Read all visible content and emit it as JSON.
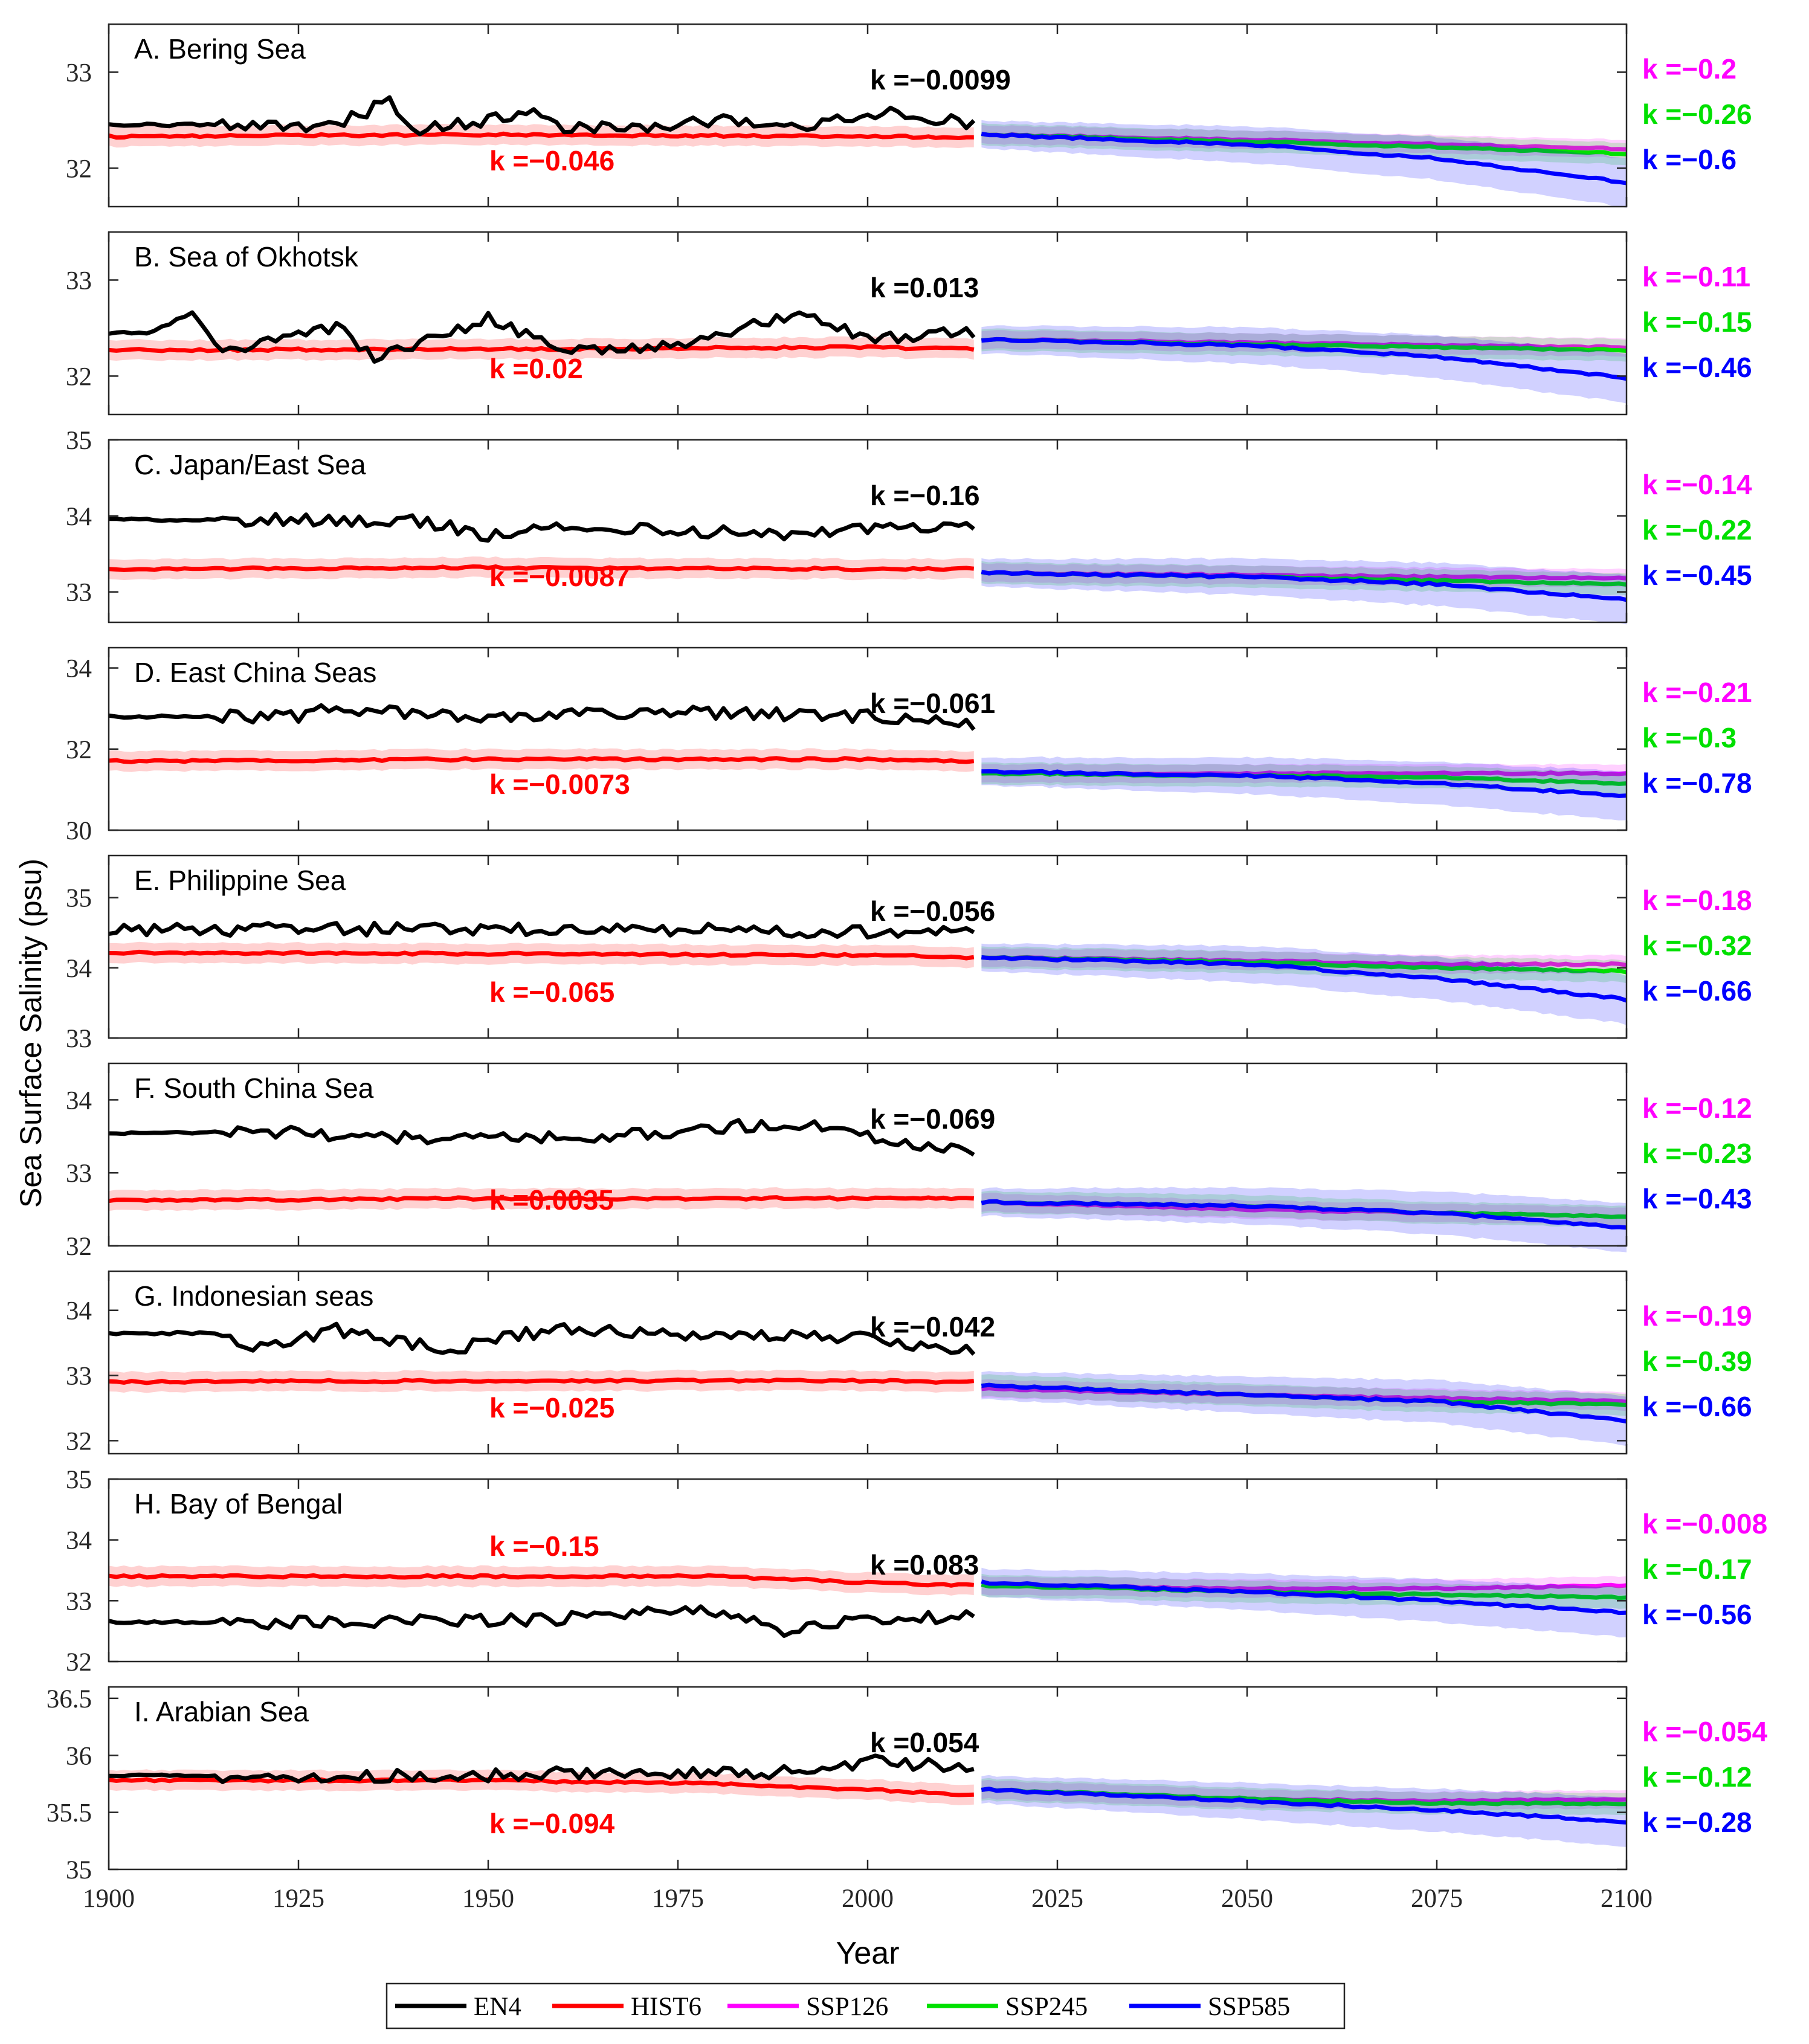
{
  "figure": {
    "ylabel": "Sea Surface Salinity (psu)",
    "xlabel": "Year",
    "x_ticks": [
      1900,
      1925,
      1950,
      1975,
      2000,
      2025,
      2050,
      2075,
      2100
    ],
    "xlim": [
      1900,
      2100
    ]
  },
  "legend": {
    "entries": [
      {
        "label": "EN4",
        "color": "#000000"
      },
      {
        "label": "HIST6",
        "color": "#ff0000"
      },
      {
        "label": "SSP126",
        "color": "#ff00ff"
      },
      {
        "label": "SSP245",
        "color": "#00e000"
      },
      {
        "label": "SSP585",
        "color": "#0000ff"
      }
    ]
  },
  "colors": {
    "en4": "#000000",
    "hist": "#ff0000",
    "ssp126": "#ff00ff",
    "ssp245": "#00e000",
    "ssp585": "#0000ff"
  },
  "chart_data": [
    {
      "type": "line",
      "title": "A. Bering Sea",
      "ylim": [
        31.6,
        33.5
      ],
      "yticks": [
        32,
        33
      ],
      "k": {
        "en4": "k =−0.0099",
        "hist": "k =−0.046",
        "ssp126": "k =−0.2",
        "ssp245": "k =−0.26",
        "ssp585": "k =−0.6"
      },
      "series": [
        {
          "name": "EN4",
          "x": [
            1900,
            1920,
            1930,
            1937,
            1940,
            1950,
            1955,
            1960,
            1975,
            1980,
            1990,
            2003,
            2014
          ],
          "y": [
            32.45,
            32.45,
            32.45,
            32.7,
            32.4,
            32.5,
            32.6,
            32.4,
            32.45,
            32.5,
            32.4,
            32.6,
            32.45
          ]
        },
        {
          "name": "HIST6",
          "x": [
            1900,
            1950,
            2000,
            2014
          ],
          "y": [
            32.33,
            32.35,
            32.33,
            32.32
          ]
        },
        {
          "name": "SSP126",
          "x": [
            2015,
            2050,
            2075,
            2100
          ],
          "y": [
            32.35,
            32.3,
            32.25,
            32.2
          ]
        },
        {
          "name": "SSP245",
          "x": [
            2015,
            2050,
            2075,
            2100
          ],
          "y": [
            32.35,
            32.28,
            32.22,
            32.15
          ]
        },
        {
          "name": "SSP585",
          "x": [
            2015,
            2050,
            2075,
            2100
          ],
          "y": [
            32.35,
            32.25,
            32.1,
            31.85
          ]
        }
      ]
    },
    {
      "type": "line",
      "title": "B. Sea of Okhotsk",
      "ylim": [
        31.6,
        33.5
      ],
      "yticks": [
        32,
        33
      ],
      "k": {
        "en4": "k =0.013",
        "hist": "k =0.02",
        "ssp126": "k =−0.11",
        "ssp245": "k =−0.15",
        "ssp585": "k =−0.46"
      },
      "series": [
        {
          "name": "EN4",
          "x": [
            1900,
            1905,
            1911,
            1915,
            1930,
            1935,
            1950,
            1960,
            1975,
            1990,
            2000,
            2014
          ],
          "y": [
            32.45,
            32.45,
            32.65,
            32.25,
            32.5,
            32.2,
            32.6,
            32.25,
            32.3,
            32.65,
            32.4,
            32.45
          ]
        },
        {
          "name": "HIST6",
          "x": [
            1900,
            1950,
            2000,
            2014
          ],
          "y": [
            32.27,
            32.28,
            32.3,
            32.28
          ]
        },
        {
          "name": "SSP126",
          "x": [
            2015,
            2050,
            2075,
            2100
          ],
          "y": [
            32.38,
            32.35,
            32.32,
            32.3
          ]
        },
        {
          "name": "SSP245",
          "x": [
            2015,
            2050,
            2075,
            2100
          ],
          "y": [
            32.38,
            32.33,
            32.3,
            32.27
          ]
        },
        {
          "name": "SSP585",
          "x": [
            2015,
            2050,
            2075,
            2100
          ],
          "y": [
            32.38,
            32.32,
            32.2,
            31.98
          ]
        }
      ]
    },
    {
      "type": "line",
      "title": "C. Japan/East Sea",
      "ylim": [
        32.6,
        35.0
      ],
      "yticks": [
        33,
        34,
        35
      ],
      "k": {
        "en4": "k =−0.16",
        "hist": "k =−0.0087",
        "ssp126": "k =−0.14",
        "ssp245": "k =−0.22",
        "ssp585": "k =−0.45"
      },
      "series": [
        {
          "name": "EN4",
          "x": [
            1900,
            1925,
            1940,
            1950,
            1960,
            1975,
            1990,
            2000,
            2014
          ],
          "y": [
            33.95,
            33.95,
            33.95,
            33.75,
            33.9,
            33.8,
            33.75,
            33.85,
            33.85
          ]
        },
        {
          "name": "HIST6",
          "x": [
            1900,
            1950,
            2000,
            2014
          ],
          "y": [
            33.3,
            33.32,
            33.3,
            33.3
          ]
        },
        {
          "name": "SSP126",
          "x": [
            2015,
            2050,
            2075,
            2100
          ],
          "y": [
            33.25,
            33.22,
            33.2,
            33.18
          ]
        },
        {
          "name": "SSP245",
          "x": [
            2015,
            2050,
            2075,
            2100
          ],
          "y": [
            33.25,
            33.2,
            33.15,
            33.1
          ]
        },
        {
          "name": "SSP585",
          "x": [
            2015,
            2050,
            2075,
            2100
          ],
          "y": [
            33.25,
            33.2,
            33.1,
            32.9
          ]
        }
      ]
    },
    {
      "type": "line",
      "title": "D. East China Seas",
      "ylim": [
        30.0,
        34.5
      ],
      "yticks": [
        30,
        32,
        34
      ],
      "k": {
        "en4": "k =−0.061",
        "hist": "k =−0.0073",
        "ssp126": "k =−0.21",
        "ssp245": "k =−0.3",
        "ssp585": "k =−0.78"
      },
      "series": [
        {
          "name": "EN4",
          "x": [
            1900,
            1925,
            1928,
            1950,
            1960,
            1975,
            2000,
            2014
          ],
          "y": [
            32.8,
            32.8,
            33.0,
            32.8,
            32.9,
            32.9,
            32.8,
            32.6
          ]
        },
        {
          "name": "HIST6",
          "x": [
            1900,
            1950,
            2000,
            2014
          ],
          "y": [
            31.7,
            31.75,
            31.75,
            31.7
          ]
        },
        {
          "name": "SSP126",
          "x": [
            2015,
            2050,
            2075,
            2100
          ],
          "y": [
            31.4,
            31.4,
            31.4,
            31.4
          ]
        },
        {
          "name": "SSP245",
          "x": [
            2015,
            2050,
            2075,
            2100
          ],
          "y": [
            31.4,
            31.35,
            31.3,
            31.15
          ]
        },
        {
          "name": "SSP585",
          "x": [
            2015,
            2050,
            2075,
            2100
          ],
          "y": [
            31.45,
            31.35,
            31.15,
            30.85
          ]
        }
      ]
    },
    {
      "type": "line",
      "title": "E. Philippine Sea",
      "ylim": [
        33.0,
        35.6
      ],
      "yticks": [
        33,
        34,
        35
      ],
      "k": {
        "en4": "k =−0.056",
        "hist": "k =−0.065",
        "ssp126": "k =−0.18",
        "ssp245": "k =−0.32",
        "ssp585": "k =−0.66"
      },
      "series": [
        {
          "name": "EN4",
          "x": [
            1900,
            1925,
            1950,
            1975,
            2000,
            2014
          ],
          "y": [
            34.55,
            34.55,
            34.55,
            34.55,
            34.5,
            34.55
          ]
        },
        {
          "name": "HIST6",
          "x": [
            1900,
            1950,
            2000,
            2014
          ],
          "y": [
            34.22,
            34.2,
            34.18,
            34.15
          ]
        },
        {
          "name": "SSP126",
          "x": [
            2015,
            2050,
            2075,
            2100
          ],
          "y": [
            34.15,
            34.1,
            34.05,
            34.05
          ]
        },
        {
          "name": "SSP245",
          "x": [
            2015,
            2050,
            2075,
            2100
          ],
          "y": [
            34.15,
            34.08,
            34.0,
            33.95
          ]
        },
        {
          "name": "SSP585",
          "x": [
            2015,
            2050,
            2075,
            2100
          ],
          "y": [
            34.15,
            34.05,
            33.85,
            33.55
          ]
        }
      ]
    },
    {
      "type": "line",
      "title": "F. South China Sea",
      "ylim": [
        32.0,
        34.5
      ],
      "yticks": [
        32,
        33,
        34
      ],
      "k": {
        "en4": "k =−0.069",
        "hist": "k =0.0035",
        "ssp126": "k =−0.12",
        "ssp245": "k =−0.23",
        "ssp585": "k =−0.43"
      },
      "series": [
        {
          "name": "EN4",
          "x": [
            1900,
            1925,
            1935,
            1950,
            1965,
            1990,
            2000,
            2014
          ],
          "y": [
            33.55,
            33.55,
            33.5,
            33.45,
            33.5,
            33.7,
            33.5,
            33.3
          ]
        },
        {
          "name": "HIST6",
          "x": [
            1900,
            1950,
            2000,
            2014
          ],
          "y": [
            32.62,
            32.65,
            32.65,
            32.65
          ]
        },
        {
          "name": "SSP126",
          "x": [
            2015,
            2050,
            2075,
            2100
          ],
          "y": [
            32.6,
            32.5,
            32.45,
            32.4
          ]
        },
        {
          "name": "SSP245",
          "x": [
            2015,
            2050,
            2075,
            2100
          ],
          "y": [
            32.6,
            32.55,
            32.45,
            32.4
          ]
        },
        {
          "name": "SSP585",
          "x": [
            2015,
            2050,
            2075,
            2100
          ],
          "y": [
            32.6,
            32.55,
            32.45,
            32.25
          ]
        }
      ]
    },
    {
      "type": "line",
      "title": "G. Indonesian seas",
      "ylim": [
        31.8,
        34.6
      ],
      "yticks": [
        32,
        33,
        34
      ],
      "k": {
        "en4": "k =−0.042",
        "hist": "k =−0.025",
        "ssp126": "k =−0.19",
        "ssp245": "k =−0.39",
        "ssp585": "k =−0.66"
      },
      "series": [
        {
          "name": "EN4",
          "x": [
            1900,
            1915,
            1917,
            1930,
            1945,
            1960,
            1975,
            2000,
            2014
          ],
          "y": [
            33.65,
            33.65,
            33.4,
            33.7,
            33.4,
            33.75,
            33.6,
            33.6,
            33.35
          ]
        },
        {
          "name": "HIST6",
          "x": [
            1900,
            1950,
            2000,
            2014
          ],
          "y": [
            32.9,
            32.92,
            32.92,
            32.9
          ]
        },
        {
          "name": "SSP126",
          "x": [
            2015,
            2050,
            2075,
            2100
          ],
          "y": [
            32.8,
            32.7,
            32.65,
            32.6
          ]
        },
        {
          "name": "SSP245",
          "x": [
            2015,
            2050,
            2075,
            2100
          ],
          "y": [
            32.85,
            32.7,
            32.6,
            32.55
          ]
        },
        {
          "name": "SSP585",
          "x": [
            2015,
            2050,
            2075,
            2100
          ],
          "y": [
            32.85,
            32.7,
            32.6,
            32.3
          ]
        }
      ]
    },
    {
      "type": "line",
      "title": "H. Bay of Bengal",
      "ylim": [
        32.0,
        35.0
      ],
      "yticks": [
        32,
        33,
        34,
        35
      ],
      "k": {
        "en4": "k =0.083",
        "hist": "k =−0.15",
        "ssp126": "k =−0.008",
        "ssp245": "k =−0.17",
        "ssp585": "k =−0.56"
      },
      "series": [
        {
          "name": "EN4",
          "x": [
            1900,
            1920,
            1930,
            1960,
            1975,
            1990,
            2000,
            2014
          ],
          "y": [
            32.65,
            32.65,
            32.65,
            32.7,
            32.9,
            32.5,
            32.7,
            32.75
          ]
        },
        {
          "name": "HIST6",
          "x": [
            1900,
            1950,
            1980,
            2000,
            2014
          ],
          "y": [
            33.4,
            33.4,
            33.4,
            33.3,
            33.25
          ]
        },
        {
          "name": "SSP126",
          "x": [
            2015,
            2050,
            2075,
            2100
          ],
          "y": [
            33.25,
            33.2,
            33.2,
            33.25
          ]
        },
        {
          "name": "SSP245",
          "x": [
            2015,
            2050,
            2075,
            2100
          ],
          "y": [
            33.25,
            33.15,
            33.1,
            33.05
          ]
        },
        {
          "name": "SSP585",
          "x": [
            2015,
            2050,
            2075,
            2100
          ],
          "y": [
            33.3,
            33.15,
            33.0,
            32.8
          ]
        }
      ]
    },
    {
      "type": "line",
      "title": "I. Arabian Sea",
      "ylim": [
        35.0,
        36.6
      ],
      "yticks": [
        35,
        35.5,
        36,
        36.5
      ],
      "k": {
        "en4": "k =0.054",
        "hist": "k =−0.094",
        "ssp126": "k =−0.054",
        "ssp245": "k =−0.12",
        "ssp585": "k =−0.28"
      },
      "series": [
        {
          "name": "EN4",
          "x": [
            1900,
            1925,
            1950,
            1965,
            1975,
            1990,
            2000,
            2014
          ],
          "y": [
            35.82,
            35.82,
            35.82,
            35.85,
            35.85,
            35.85,
            35.95,
            35.9
          ]
        },
        {
          "name": "HIST6",
          "x": [
            1900,
            1950,
            1980,
            2000,
            2014
          ],
          "y": [
            35.78,
            35.78,
            35.75,
            35.7,
            35.65
          ]
        },
        {
          "name": "SSP126",
          "x": [
            2015,
            2050,
            2075,
            2100
          ],
          "y": [
            35.7,
            35.62,
            35.6,
            35.62
          ]
        },
        {
          "name": "SSP245",
          "x": [
            2015,
            2050,
            2075,
            2100
          ],
          "y": [
            35.7,
            35.62,
            35.58,
            35.58
          ]
        },
        {
          "name": "SSP585",
          "x": [
            2015,
            2050,
            2075,
            2100
          ],
          "y": [
            35.7,
            35.6,
            35.52,
            35.42
          ]
        }
      ]
    }
  ]
}
